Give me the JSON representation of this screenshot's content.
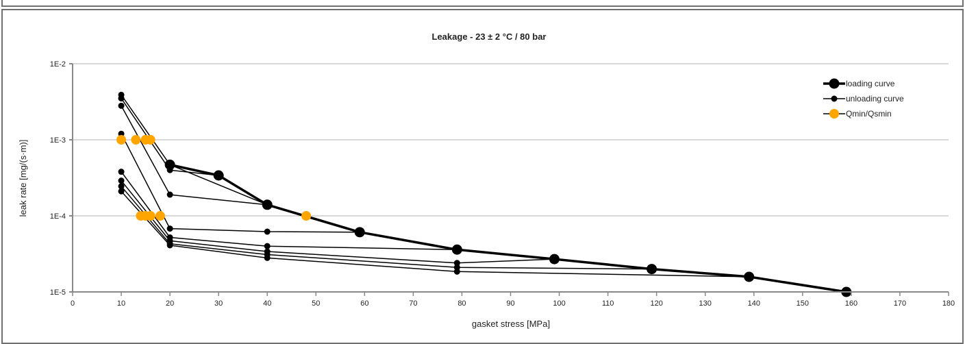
{
  "chart_data": {
    "type": "scatter",
    "title": "Leakage - 23 ± 2 °C / 80 bar",
    "xlabel": "gasket stress [MPa]",
    "ylabel": "leak rate [mg/(s·m)]",
    "xlim": [
      0,
      180
    ],
    "ylim": [
      1e-05,
      0.01
    ],
    "yscale": "log",
    "grid": "horizontal",
    "legend_position": "top-right",
    "x_ticks": [
      "0",
      "10",
      "20",
      "30",
      "40",
      "50",
      "60",
      "70",
      "80",
      "90",
      "100",
      "110",
      "120",
      "130",
      "140",
      "150",
      "160",
      "170",
      "180"
    ],
    "y_ticks": [
      {
        "value": 0.01,
        "label": "1E-2"
      },
      {
        "value": 0.001,
        "label": "1E-3"
      },
      {
        "value": 0.0001,
        "label": "1E-4"
      },
      {
        "value": 1e-05,
        "label": "1E-5"
      }
    ],
    "series": [
      {
        "name": "loading curve",
        "style": "loading",
        "color": "#000000",
        "points": [
          [
            20,
            0.00047
          ],
          [
            30,
            0.00034
          ],
          [
            40,
            0.00014
          ],
          [
            59,
            6.1e-05
          ],
          [
            79,
            3.6e-05
          ],
          [
            99,
            2.7e-05
          ],
          [
            119,
            2e-05
          ],
          [
            139,
            1.58e-05
          ],
          [
            159,
            1e-05
          ]
        ]
      },
      {
        "name": "unloading curve",
        "style": "unloading",
        "color": "#000000",
        "points": [
          [
            159,
            1e-05
          ],
          [
            139,
            1.58e-05
          ],
          [
            119,
            2e-05
          ],
          [
            99,
            2.7e-05
          ],
          [
            79,
            3.6e-05
          ],
          [
            59,
            6.1e-05
          ],
          [
            40,
            0.00014
          ],
          [
            20,
            0.00047
          ],
          [
            10,
            0.0039
          ]
        ]
      },
      {
        "style": "unloading",
        "color": "#000000",
        "points": [
          [
            30,
            0.00034
          ],
          [
            20,
            0.0004
          ],
          [
            10,
            0.0035
          ]
        ]
      },
      {
        "style": "unloading",
        "color": "#000000",
        "points": [
          [
            40,
            0.00014
          ],
          [
            20,
            0.00019
          ],
          [
            10,
            0.0028
          ]
        ]
      },
      {
        "style": "unloading",
        "color": "#000000",
        "points": [
          [
            59,
            6.1e-05
          ],
          [
            40,
            6.2e-05
          ],
          [
            20,
            6.8e-05
          ],
          [
            10,
            0.0012
          ]
        ]
      },
      {
        "style": "unloading",
        "color": "#000000",
        "points": [
          [
            79,
            3.6e-05
          ],
          [
            40,
            4e-05
          ],
          [
            20,
            5.2e-05
          ],
          [
            10,
            0.00038
          ]
        ]
      },
      {
        "style": "unloading",
        "color": "#000000",
        "points": [
          [
            99,
            2.7e-05
          ],
          [
            79,
            2.4e-05
          ],
          [
            40,
            3.4e-05
          ],
          [
            20,
            4.7e-05
          ],
          [
            10,
            0.00029
          ]
        ]
      },
      {
        "style": "unloading",
        "color": "#000000",
        "points": [
          [
            119,
            2e-05
          ],
          [
            79,
            2.1e-05
          ],
          [
            40,
            3.1e-05
          ],
          [
            20,
            4.3e-05
          ],
          [
            10,
            0.000245
          ]
        ]
      },
      {
        "style": "unloading",
        "color": "#000000",
        "points": [
          [
            139,
            1.58e-05
          ],
          [
            79,
            1.85e-05
          ],
          [
            40,
            2.8e-05
          ],
          [
            20,
            4.1e-05
          ],
          [
            10,
            0.00021
          ]
        ]
      },
      {
        "name": "Qmin/Qsmin",
        "style": "marker",
        "color": "#ffa500",
        "points": [
          [
            10,
            0.001
          ],
          [
            13,
            0.001
          ],
          [
            15,
            0.001
          ],
          [
            16,
            0.001
          ],
          [
            14,
            0.0001
          ],
          [
            15,
            0.0001
          ],
          [
            16,
            0.0001
          ],
          [
            18,
            0.0001
          ],
          [
            48,
            0.0001
          ]
        ]
      }
    ]
  }
}
